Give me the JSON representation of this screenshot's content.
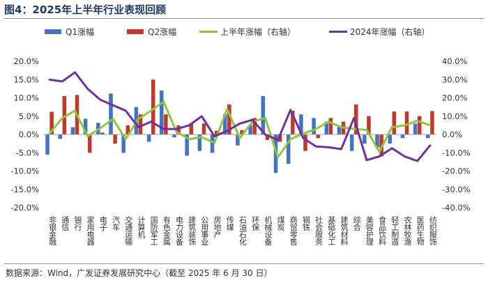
{
  "figure": {
    "title": "图4：2025年上半年行业表现回顾",
    "source": "数据来源：Wind，广发证券发展研究中心（截至 2025 年 6 月 30 日）"
  },
  "colors": {
    "q1": "#4472c4",
    "q2": "#c0392b",
    "h1": "#8dc63f",
    "y2024": "#7030a0"
  },
  "chart_data": {
    "type": "bar",
    "categories": [
      "非银金融",
      "通信",
      "银行",
      "家用电器",
      "电子",
      "汽车",
      "交通运输",
      "计算机",
      "国防军工",
      "有色金属",
      "电力设备",
      "建筑装饰",
      "公用事业",
      "房地产",
      "传媒",
      "石油石化",
      "环保",
      "机械设备",
      "煤炭",
      "商贸零售",
      "钢铁",
      "社会服务",
      "基础化工",
      "建筑材料",
      "综合",
      "美容护理",
      "食品饮料",
      "轻工制造",
      "农林牧渔",
      "医药生物",
      "纺织服饰"
    ],
    "series": [
      {
        "name": "Q1涨幅",
        "axis": "left",
        "type": "bar",
        "values": [
          -5.5,
          -1.2,
          2.0,
          4.3,
          3.2,
          11.2,
          -5.0,
          7.5,
          -2.0,
          12.0,
          -0.8,
          -5.8,
          -4.5,
          -5.0,
          5.5,
          -3.0,
          2.5,
          10.5,
          -10.5,
          -8.0,
          5.5,
          4.5,
          3.5,
          2.0,
          -4.5,
          -2.5,
          -3.5,
          -2.5,
          -1.0,
          3.0,
          -1.0
        ]
      },
      {
        "name": "Q2涨幅",
        "axis": "left",
        "type": "bar",
        "values": [
          6.2,
          10.5,
          10.8,
          -5.0,
          0.5,
          -2.5,
          2.5,
          5.5,
          15.0,
          5.5,
          2.5,
          3.0,
          3.0,
          1.0,
          8.2,
          1.2,
          4.5,
          -1.5,
          -2.0,
          6.5,
          -4.5,
          -1.0,
          4.5,
          3.5,
          8.2,
          5.0,
          -6.0,
          6.3,
          6.3,
          5.0,
          6.4
        ]
      },
      {
        "name": "上半年涨幅（右轴）",
        "axis": "right",
        "type": "line",
        "values": [
          0.5,
          9.0,
          13.0,
          -1.0,
          3.5,
          8.5,
          -2.5,
          8.5,
          13.0,
          18.0,
          1.5,
          -2.5,
          -1.5,
          -4.5,
          14.0,
          -2.0,
          7.0,
          9.0,
          -12.5,
          -2.5,
          0.5,
          3.0,
          7.0,
          4.0,
          3.0,
          2.5,
          -9.5,
          4.0,
          5.0,
          7.5,
          5.0
        ]
      },
      {
        "name": "2024年涨幅（右轴）",
        "axis": "right",
        "type": "line",
        "values": [
          30.0,
          29.0,
          34.0,
          25.0,
          19.0,
          16.0,
          13.0,
          4.0,
          7.0,
          3.0,
          3.0,
          5.0,
          10.0,
          -1.0,
          2.0,
          6.0,
          8.0,
          0.0,
          -3.0,
          13.5,
          -2.0,
          -6.5,
          -7.0,
          -8.0,
          9.0,
          -14.0,
          -12.0,
          -7.5,
          -12.0,
          -14.5,
          -6.0
        ]
      }
    ],
    "left_axis": {
      "ylim": [
        -20,
        20
      ],
      "ticks": [
        "20.0%",
        "15.0%",
        "10.0%",
        "5.0%",
        "0.0%",
        "-5.0%",
        "-10.0%",
        "-15.0%",
        "-20.0%"
      ]
    },
    "right_axis": {
      "ylim": [
        -40,
        40
      ],
      "ticks": [
        "40.0%",
        "30.0%",
        "20.0%",
        "10.0%",
        "0.0%",
        "-10.0%",
        "-20.0%",
        "-30.0%",
        "-40.0%"
      ]
    },
    "legend_position": "top",
    "grid": false
  }
}
